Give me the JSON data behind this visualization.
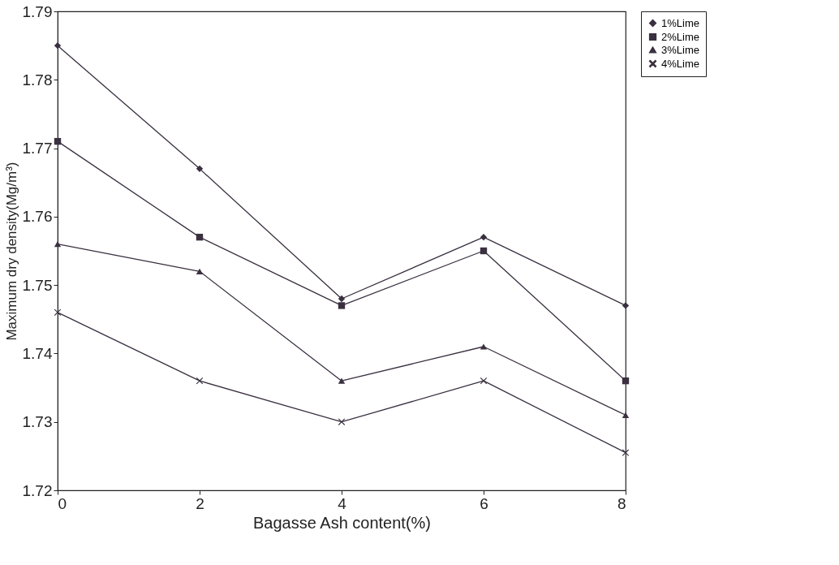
{
  "chart_data": {
    "type": "line",
    "xlabel": "Bagasse  Ash content(%)",
    "ylabel": "Maximum dry density(Mg/m³)",
    "x": [
      0,
      2,
      4,
      6,
      8
    ],
    "series": [
      {
        "name": "1%Lime",
        "color": "#3a3040",
        "marker": "diamond",
        "values": [
          1.785,
          1.767,
          1.748,
          1.757,
          1.747
        ]
      },
      {
        "name": "2%Lime",
        "color": "#3a3040",
        "marker": "square",
        "values": [
          1.771,
          1.757,
          1.747,
          1.755,
          1.736
        ]
      },
      {
        "name": "3%Lime",
        "color": "#3a3040",
        "marker": "triangle",
        "values": [
          1.756,
          1.752,
          1.736,
          1.741,
          1.731
        ]
      },
      {
        "name": "4%Lime",
        "color": "#3a3040",
        "marker": "cross",
        "values": [
          1.746,
          1.736,
          1.73,
          1.736,
          1.7255
        ]
      }
    ],
    "xlim": [
      0,
      8
    ],
    "xticks": [
      0,
      2,
      4,
      6,
      8
    ],
    "ylim": [
      1.72,
      1.79
    ],
    "yticks": [
      1.72,
      1.73,
      1.74,
      1.75,
      1.76,
      1.77,
      1.78,
      1.79
    ],
    "grid": false,
    "legend": "right",
    "line_style": "solid"
  }
}
